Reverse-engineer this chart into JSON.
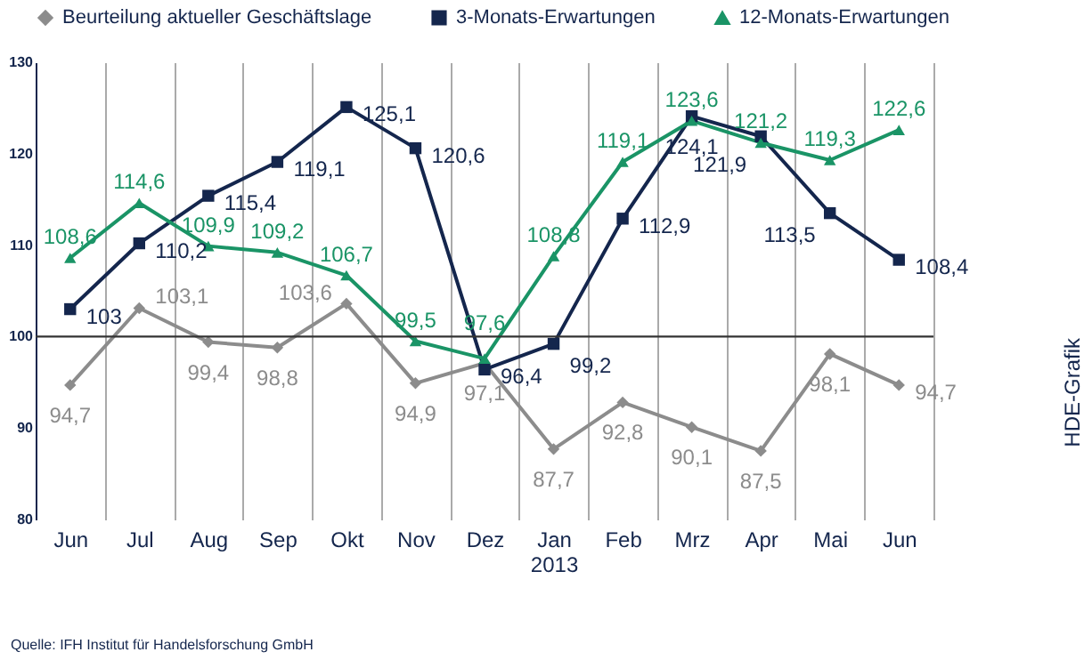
{
  "chart_data": {
    "type": "line",
    "categories": [
      "Jun",
      "Jul",
      "Aug",
      "Sep",
      "Okt",
      "Nov",
      "Dez",
      "Jan 2013",
      "Feb",
      "Mrz",
      "Apr",
      "Mai",
      "Jun"
    ],
    "series": [
      {
        "name": "Beurteilung aktueller Geschäftslage",
        "color": "#8c8c8c",
        "marker": "diamond",
        "values": [
          94.7,
          103.1,
          99.4,
          98.8,
          103.6,
          94.9,
          97.1,
          87.7,
          92.8,
          90.1,
          87.5,
          98.1,
          94.7
        ],
        "value_labels": [
          "94,7",
          "103,1",
          "99,4",
          "98,8",
          "103,6",
          "94,9",
          "97,1",
          "87,7",
          "92,8",
          "90,1",
          "87,5",
          "98,1",
          "94,7"
        ]
      },
      {
        "name": "3-Monats-Erwartungen",
        "color": "#14264d",
        "marker": "square",
        "values": [
          103,
          110.2,
          115.4,
          119.1,
          125.1,
          120.6,
          96.4,
          99.2,
          112.9,
          124.1,
          121.9,
          113.5,
          108.4
        ],
        "value_labels": [
          "103",
          "110,2",
          "115,4",
          "119,1",
          "125,1",
          "120,6",
          "96,4",
          "99,2",
          "112,9",
          "124,1",
          "121,9",
          "113,5",
          "108,4"
        ]
      },
      {
        "name": "12-Monats-Erwartungen",
        "color": "#1a9466",
        "marker": "triangle",
        "values": [
          108.6,
          114.6,
          109.9,
          109.2,
          106.7,
          99.5,
          97.6,
          108.8,
          119.1,
          123.6,
          121.2,
          119.3,
          122.6
        ],
        "value_labels": [
          "108,6",
          "114,6",
          "109,9",
          "109,2",
          "106,7",
          "99,5",
          "97,6",
          "108,8",
          "119,1",
          "123,6",
          "121,2",
          "119,3",
          "122,6"
        ]
      }
    ],
    "ylim": [
      80,
      130
    ],
    "yticks": [
      80,
      90,
      100,
      110,
      120,
      130
    ],
    "grid": "x",
    "legend": "top",
    "ref_lines": [
      {
        "axis": "y",
        "value": 100,
        "color": "#333333"
      }
    ],
    "annotations": [
      "Quelle: IFH Institut für Handelsforschung GmbH",
      "HDE-Grafik"
    ]
  }
}
